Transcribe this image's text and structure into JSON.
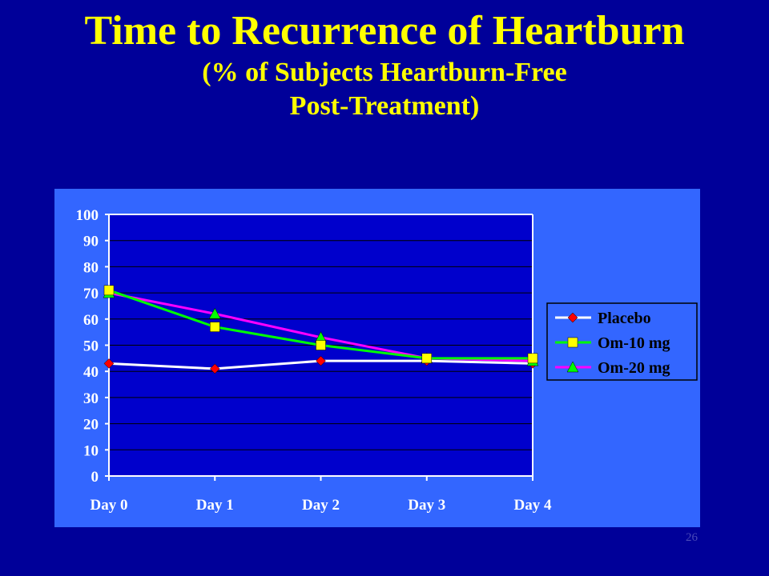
{
  "slide": {
    "title": "Time to Recurrence of Heartburn",
    "subtitle_line1": "(% of Subjects Heartburn-Free",
    "subtitle_line2": "Post-Treatment)",
    "page_number": "26"
  },
  "colors": {
    "background": "#000099",
    "title": "#FFFF00",
    "panel": "#3366FF",
    "plot_area": "#0000CC",
    "placebo_line": "#FFFFFF",
    "placebo_marker": "#FF0000",
    "om10": "#00FF00",
    "om10_marker": "#FFFF00",
    "om20": "#FF00FF",
    "om20_marker": "#00FF00"
  },
  "chart_data": {
    "type": "line",
    "title": "Time to Recurrence of Heartburn",
    "xlabel": "",
    "ylabel": "",
    "categories": [
      "Day  0",
      "Day 1",
      "Day 2",
      "Day 3",
      "Day 4"
    ],
    "ylim": [
      0,
      100
    ],
    "yticks": [
      0,
      10,
      20,
      30,
      40,
      50,
      60,
      70,
      80,
      90,
      100
    ],
    "grid": "horizontal",
    "legend_position": "right",
    "series": [
      {
        "name": "Placebo",
        "values": [
          43,
          41,
          44,
          44,
          43
        ],
        "line_color": "#FFFFFF",
        "marker": "diamond",
        "marker_color": "#FF0000"
      },
      {
        "name": "Om-10 mg",
        "values": [
          71,
          57,
          50,
          45,
          45
        ],
        "line_color": "#00FF00",
        "marker": "square",
        "marker_color": "#FFFF00"
      },
      {
        "name": "Om-20 mg",
        "values": [
          70,
          62,
          53,
          45,
          44
        ],
        "line_color": "#FF00FF",
        "marker": "triangle",
        "marker_color": "#00FF00"
      }
    ]
  }
}
